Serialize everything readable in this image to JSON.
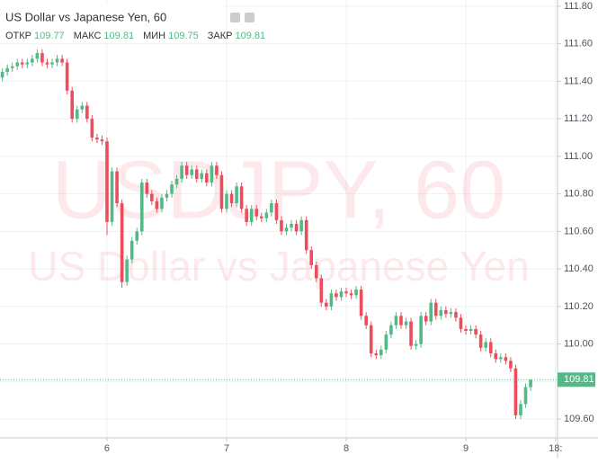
{
  "chart_data": {
    "type": "candlestick",
    "title": "US Dollar vs Japanese Yen, 60",
    "watermark": "USDJPY, 60",
    "watermark_subtitle": "US Dollar vs Japanese Yen",
    "ohlc_labels": [
      "ОТКР",
      "МАКС",
      "МИН",
      "ЗАКР"
    ],
    "up_color": "#53b987",
    "down_color": "#eb4d5c",
    "x": [
      -21,
      -20,
      -19,
      -18,
      -17,
      -16,
      -15,
      -14,
      -13,
      -12,
      -11,
      -10,
      -9,
      -8,
      -7,
      -6,
      -5,
      -4,
      -3,
      -2,
      -1,
      0,
      1,
      2,
      3,
      4,
      5,
      6,
      7,
      8,
      9,
      10,
      11,
      12,
      13,
      14,
      15,
      16,
      17,
      18,
      19,
      20,
      21,
      22,
      23,
      24,
      25,
      26,
      27,
      28,
      29,
      30,
      31,
      32,
      33,
      34,
      35,
      36,
      37,
      38,
      39,
      40,
      41,
      42,
      43,
      44,
      45,
      46,
      47,
      48,
      49,
      50,
      51,
      52,
      53,
      54,
      55,
      56,
      57,
      58,
      59,
      60,
      61,
      62,
      63,
      64,
      65,
      66,
      67,
      68,
      69,
      70,
      71,
      72,
      73,
      74,
      75,
      76,
      77,
      78,
      79,
      80,
      81,
      82,
      83,
      84,
      85
    ],
    "open": [
      111.42,
      111.45,
      111.47,
      111.48,
      111.5,
      111.49,
      111.5,
      111.52,
      111.55,
      111.5,
      111.49,
      111.5,
      111.52,
      111.5,
      111.35,
      111.2,
      111.25,
      111.27,
      111.2,
      111.1,
      111.09,
      111.08,
      110.65,
      110.92,
      110.75,
      110.33,
      110.45,
      110.55,
      110.6,
      110.86,
      110.8,
      110.76,
      110.72,
      110.78,
      110.8,
      110.85,
      110.88,
      110.95,
      110.9,
      110.93,
      110.88,
      110.91,
      110.86,
      110.95,
      110.9,
      110.72,
      110.8,
      110.75,
      110.84,
      110.72,
      110.65,
      110.72,
      110.68,
      110.67,
      110.7,
      110.75,
      110.66,
      110.6,
      110.62,
      110.64,
      110.6,
      110.66,
      110.5,
      110.42,
      110.35,
      110.22,
      110.2,
      110.27,
      110.25,
      110.28,
      110.27,
      110.26,
      110.29,
      110.15,
      110.1,
      109.95,
      109.94,
      109.97,
      110.05,
      110.1,
      110.15,
      110.1,
      110.12,
      109.99,
      110.0,
      110.15,
      110.12,
      110.22,
      110.15,
      110.18,
      110.16,
      110.17,
      110.14,
      110.08,
      110.07,
      110.08,
      110.05,
      109.98,
      110.01,
      109.95,
      109.92,
      109.93,
      109.91,
      109.87,
      109.62,
      109.68,
      109.77
    ],
    "high": [
      111.47,
      111.49,
      111.5,
      111.52,
      111.52,
      111.52,
      111.54,
      111.57,
      111.57,
      111.52,
      111.52,
      111.54,
      111.54,
      111.52,
      111.37,
      111.27,
      111.29,
      111.29,
      111.22,
      111.12,
      111.11,
      111.1,
      110.94,
      110.94,
      110.77,
      110.47,
      110.57,
      110.62,
      110.88,
      110.88,
      110.82,
      110.78,
      110.8,
      110.82,
      110.87,
      110.9,
      110.97,
      110.97,
      110.95,
      110.95,
      110.93,
      110.93,
      110.97,
      110.97,
      110.92,
      110.82,
      110.82,
      110.86,
      110.86,
      110.74,
      110.74,
      110.74,
      110.7,
      110.72,
      110.77,
      110.77,
      110.68,
      110.64,
      110.66,
      110.66,
      110.68,
      110.68,
      110.52,
      110.44,
      110.37,
      110.24,
      110.29,
      110.29,
      110.3,
      110.3,
      110.29,
      110.31,
      110.31,
      110.17,
      110.12,
      109.97,
      109.99,
      110.07,
      110.12,
      110.17,
      110.17,
      110.14,
      110.14,
      110.02,
      110.17,
      110.17,
      110.24,
      110.24,
      110.2,
      110.2,
      110.19,
      110.19,
      110.16,
      110.1,
      110.1,
      110.1,
      110.07,
      110.03,
      110.03,
      109.97,
      109.95,
      109.95,
      109.93,
      109.89,
      109.7,
      109.79,
      109.81
    ],
    "low": [
      111.4,
      111.43,
      111.45,
      111.46,
      111.47,
      111.47,
      111.48,
      111.5,
      111.48,
      111.47,
      111.47,
      111.48,
      111.48,
      111.33,
      111.18,
      111.18,
      111.23,
      111.18,
      111.08,
      111.07,
      111.06,
      110.58,
      110.63,
      110.73,
      110.3,
      110.31,
      110.43,
      110.53,
      110.58,
      110.78,
      110.74,
      110.7,
      110.7,
      110.76,
      110.78,
      110.83,
      110.86,
      110.88,
      110.88,
      110.86,
      110.86,
      110.84,
      110.84,
      110.88,
      110.7,
      110.7,
      110.73,
      110.73,
      110.7,
      110.63,
      110.63,
      110.66,
      110.65,
      110.65,
      110.68,
      110.64,
      110.58,
      110.58,
      110.6,
      110.58,
      110.58,
      110.48,
      110.4,
      110.33,
      110.2,
      110.18,
      110.18,
      110.23,
      110.23,
      110.25,
      110.24,
      110.24,
      110.13,
      110.08,
      109.93,
      109.92,
      109.92,
      109.95,
      110.03,
      110.08,
      110.08,
      110.08,
      109.97,
      109.97,
      109.98,
      110.1,
      110.1,
      110.13,
      110.13,
      110.14,
      110.14,
      110.12,
      110.06,
      110.05,
      110.05,
      110.03,
      109.96,
      109.96,
      109.93,
      109.9,
      109.9,
      109.89,
      109.85,
      109.6,
      109.6,
      109.66,
      109.75
    ],
    "close": [
      111.45,
      111.47,
      111.48,
      111.5,
      111.49,
      111.5,
      111.52,
      111.55,
      111.5,
      111.49,
      111.5,
      111.52,
      111.5,
      111.35,
      111.2,
      111.25,
      111.27,
      111.2,
      111.1,
      111.09,
      111.08,
      110.65,
      110.92,
      110.75,
      110.33,
      110.45,
      110.55,
      110.6,
      110.86,
      110.8,
      110.76,
      110.72,
      110.78,
      110.8,
      110.85,
      110.88,
      110.95,
      110.9,
      110.93,
      110.88,
      110.91,
      110.86,
      110.95,
      110.9,
      110.72,
      110.8,
      110.75,
      110.84,
      110.72,
      110.65,
      110.72,
      110.68,
      110.67,
      110.7,
      110.75,
      110.66,
      110.6,
      110.62,
      110.64,
      110.6,
      110.66,
      110.5,
      110.42,
      110.35,
      110.22,
      110.2,
      110.27,
      110.25,
      110.28,
      110.27,
      110.26,
      110.29,
      110.15,
      110.1,
      109.95,
      109.94,
      109.97,
      110.05,
      110.1,
      110.15,
      110.1,
      110.12,
      109.99,
      110.0,
      110.15,
      110.12,
      110.22,
      110.15,
      110.18,
      110.16,
      110.17,
      110.14,
      110.08,
      110.07,
      110.08,
      110.05,
      109.98,
      110.01,
      109.95,
      109.92,
      109.93,
      109.91,
      109.87,
      109.62,
      109.68,
      109.77,
      109.81
    ],
    "xlim": [
      -21.47,
      90.4
    ],
    "xticks": [
      {
        "value": 0,
        "label": "6"
      },
      {
        "value": 24,
        "label": "7"
      },
      {
        "value": 48,
        "label": "8"
      },
      {
        "value": 72,
        "label": "9"
      },
      {
        "value": 90,
        "label": "18:"
      }
    ],
    "ylim": [
      109.5,
      111.833
    ],
    "yticks": [
      {
        "value": 109.6,
        "label": "109.60"
      },
      {
        "value": 109.8,
        "label": "109.80"
      },
      {
        "value": 110.0,
        "label": "110.00"
      },
      {
        "value": 110.2,
        "label": "110.20"
      },
      {
        "value": 110.4,
        "label": "110.40"
      },
      {
        "value": 110.6,
        "label": "110.60"
      },
      {
        "value": 110.8,
        "label": "110.80"
      },
      {
        "value": 111.0,
        "label": "111.00"
      },
      {
        "value": 111.2,
        "label": "111.20"
      },
      {
        "value": 111.4,
        "label": "111.40"
      },
      {
        "value": 111.6,
        "label": "111.60"
      },
      {
        "value": 111.8,
        "label": "111.80"
      }
    ],
    "grid": true
  }
}
